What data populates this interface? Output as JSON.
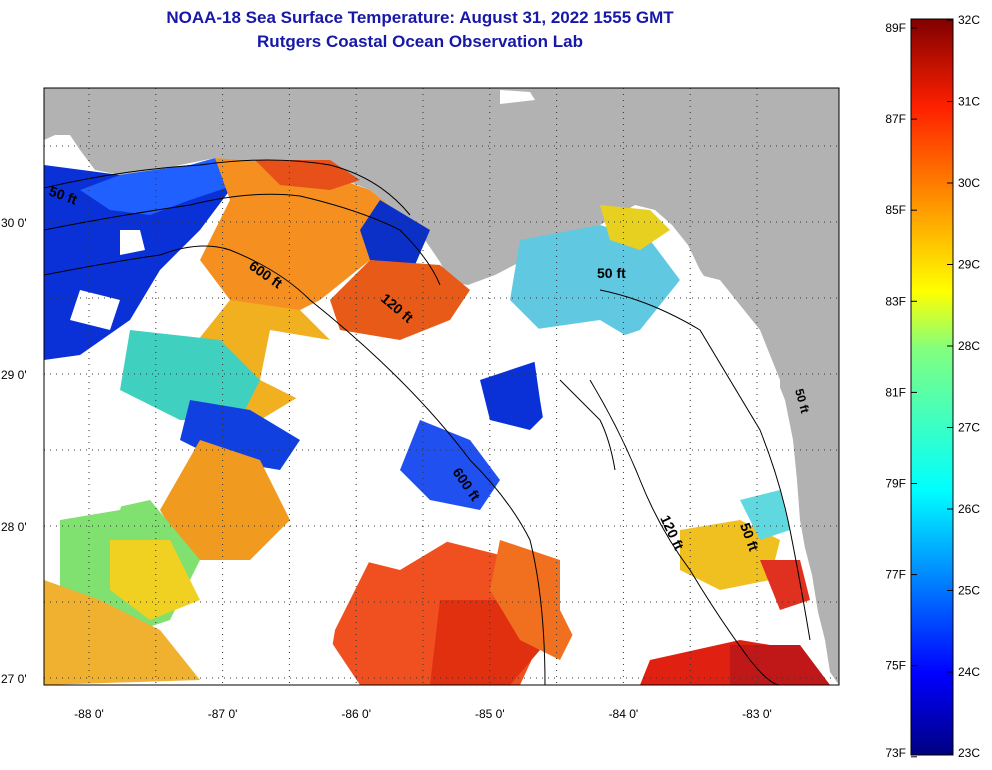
{
  "header": {
    "title": "NOAA-18 Sea Surface Temperature:  August 31, 2022 1555 GMT",
    "subtitle": "Rutgers Coastal Ocean Observation Lab"
  },
  "map": {
    "lat_labels": [
      {
        "label": "30 0'",
        "value": 30
      },
      {
        "label": "29 0'",
        "value": 29
      },
      {
        "label": "28 0'",
        "value": 28
      },
      {
        "label": "27 0'",
        "value": 27
      }
    ],
    "lon_labels": [
      {
        "label": "-88 0'",
        "value": -88
      },
      {
        "label": "-87 0'",
        "value": -87
      },
      {
        "label": "-86 0'",
        "value": -86
      },
      {
        "label": "-85 0'",
        "value": -85
      },
      {
        "label": "-84 0'",
        "value": -84
      },
      {
        "label": "-83 0'",
        "value": -83
      }
    ],
    "depth_labels": [
      "50 ft",
      "600 ft",
      "120 ft",
      "50 ft",
      "600 ft",
      "120 ft",
      "50 ft",
      "50 ft"
    ]
  },
  "colorbar": {
    "f_labels": [
      "89F",
      "87F",
      "85F",
      "83F",
      "81F",
      "79F",
      "77F",
      "75F",
      "73F"
    ],
    "c_labels": [
      "32C",
      "31C",
      "30C",
      "29C",
      "28C",
      "27C",
      "26C",
      "25C",
      "24C",
      "23C"
    ]
  },
  "colors": {
    "land": "#b2b2b2",
    "cloud": "#ffffff",
    "title": "#1818a8"
  }
}
